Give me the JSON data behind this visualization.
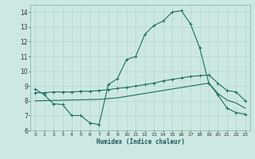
{
  "xlabel": "Humidex (Indice chaleur)",
  "bg_color": "#cde8e2",
  "line_color": "#1a6e60",
  "grid_color": "#b8d8d2",
  "ylim": [
    6,
    14.5
  ],
  "xlim": [
    -0.5,
    23.5
  ],
  "yticks": [
    6,
    7,
    8,
    9,
    10,
    11,
    12,
    13,
    14
  ],
  "xticks": [
    0,
    1,
    2,
    3,
    4,
    5,
    6,
    7,
    8,
    9,
    10,
    11,
    12,
    13,
    14,
    15,
    16,
    17,
    18,
    19,
    20,
    21,
    22,
    23
  ],
  "line1_x": [
    0,
    1,
    2,
    3,
    4,
    5,
    6,
    7,
    8,
    9,
    10,
    11,
    12,
    13,
    14,
    15,
    16,
    17,
    18,
    19,
    20,
    21,
    22,
    23
  ],
  "line1_y": [
    8.8,
    8.4,
    7.8,
    7.75,
    7.0,
    7.0,
    6.5,
    6.4,
    9.1,
    9.5,
    10.8,
    11.0,
    12.5,
    13.1,
    13.4,
    14.0,
    14.1,
    13.2,
    11.6,
    9.2,
    8.4,
    7.5,
    7.2,
    7.1
  ],
  "line2_x": [
    0,
    1,
    2,
    3,
    4,
    5,
    6,
    7,
    8,
    9,
    10,
    11,
    12,
    13,
    14,
    15,
    16,
    17,
    18,
    19,
    20,
    21,
    22,
    23
  ],
  "line2_y": [
    8.55,
    8.55,
    8.6,
    8.6,
    8.6,
    8.65,
    8.65,
    8.7,
    8.75,
    8.85,
    8.9,
    9.0,
    9.1,
    9.2,
    9.35,
    9.45,
    9.55,
    9.65,
    9.7,
    9.75,
    9.2,
    8.7,
    8.6,
    8.0
  ],
  "line3_x": [
    0,
    7,
    8,
    9,
    10,
    11,
    12,
    13,
    14,
    15,
    16,
    17,
    18,
    19,
    20,
    21,
    22,
    23
  ],
  "line3_y": [
    8.0,
    8.1,
    8.15,
    8.2,
    8.3,
    8.4,
    8.5,
    8.6,
    8.7,
    8.8,
    8.9,
    9.0,
    9.1,
    9.2,
    8.5,
    8.05,
    7.85,
    7.5
  ]
}
